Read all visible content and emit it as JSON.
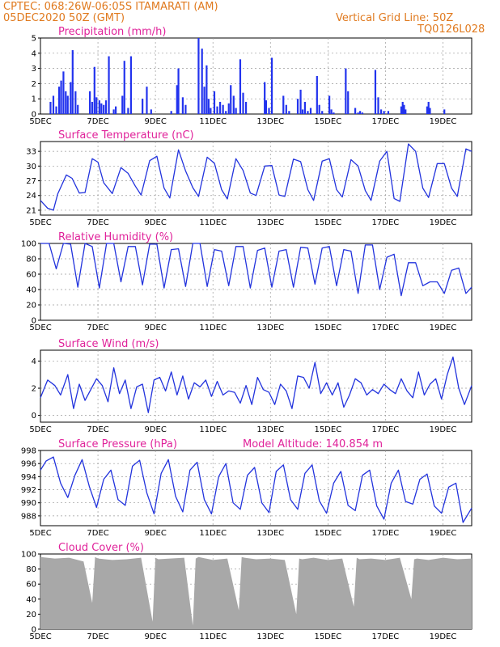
{
  "header": {
    "line1_left": "CPTEC:   068:26W-06:05S  ITAMARATI (AM)",
    "line2_left": "05DEC2020 50Z (GMT)",
    "line2_right": "Vertical Grid Line: 50Z",
    "line3_right": "TQ0126L028"
  },
  "colors": {
    "header": "#e07a1f",
    "panel_title": "#e0229a",
    "series_line": "#2233dd",
    "precip_bar": "#2233ee",
    "cloud_fill": "#a8a8a8",
    "grid": "#9a9a9a"
  },
  "chart_data": [
    {
      "type": "bar",
      "title": "Precipitation (mm/h)",
      "x_labels": [
        "5DEC",
        "7DEC",
        "9DEC",
        "11DEC",
        "13DEC",
        "15DEC",
        "17DEC",
        "19DEC"
      ],
      "x_range_days": [
        0,
        15
      ],
      "ylim": [
        0,
        5
      ],
      "yticks": [
        0,
        1,
        2,
        3,
        4,
        5
      ],
      "grid": true,
      "x": [
        0.35,
        0.45,
        0.55,
        0.65,
        0.72,
        0.8,
        0.88,
        0.95,
        1.05,
        1.12,
        1.22,
        1.3,
        1.72,
        1.8,
        1.88,
        1.95,
        2.05,
        2.12,
        2.2,
        2.28,
        2.38,
        2.55,
        2.62,
        2.85,
        2.92,
        3.05,
        3.15,
        3.55,
        3.7,
        3.85,
        4.55,
        4.75,
        4.8,
        4.95,
        5.05,
        5.5,
        5.62,
        5.7,
        5.78,
        5.85,
        5.92,
        6.05,
        6.15,
        6.25,
        6.35,
        6.45,
        6.55,
        6.62,
        6.72,
        6.8,
        6.95,
        7.05,
        7.15,
        7.8,
        7.85,
        7.95,
        8.05,
        8.45,
        8.55,
        8.65,
        8.95,
        9.05,
        9.12,
        9.2,
        9.3,
        9.4,
        9.62,
        9.7,
        9.8,
        10.05,
        10.12,
        10.2,
        10.62,
        10.7,
        10.95,
        11.05,
        11.12,
        11.2,
        11.65,
        11.75,
        11.85,
        11.95,
        12.1,
        12.55,
        12.6,
        12.65,
        12.7,
        13.45,
        13.5,
        13.55,
        14.05
      ],
      "values": [
        0.8,
        1.2,
        0.5,
        1.8,
        2.2,
        2.8,
        1.5,
        1.2,
        2.1,
        4.2,
        1.5,
        0.6,
        1.5,
        0.8,
        3.1,
        1.1,
        0.9,
        0.7,
        0.6,
        0.9,
        3.8,
        0.3,
        0.5,
        1.2,
        3.5,
        0.4,
        3.8,
        1.0,
        1.8,
        0.3,
        0.2,
        1.9,
        3.0,
        1.1,
        0.6,
        5.0,
        4.3,
        1.8,
        3.2,
        1.0,
        0.4,
        1.5,
        0.5,
        0.8,
        0.6,
        0.2,
        0.7,
        1.9,
        1.2,
        0.4,
        3.6,
        1.4,
        0.8,
        2.1,
        0.9,
        0.4,
        3.7,
        1.2,
        0.6,
        0.2,
        1.0,
        1.6,
        0.3,
        0.8,
        0.2,
        0.4,
        2.5,
        0.6,
        0.2,
        1.2,
        0.3,
        0.1,
        3.0,
        1.5,
        0.4,
        0.1,
        0.2,
        0.1,
        2.9,
        1.1,
        0.3,
        0.2,
        0.2,
        0.5,
        0.8,
        0.6,
        0.3,
        0.5,
        0.8,
        0.4,
        0.3
      ]
    },
    {
      "type": "line",
      "title": "Surface Temperature (nC)",
      "x_labels": [
        "5DEC",
        "7DEC",
        "9DEC",
        "11DEC",
        "13DEC",
        "15DEC",
        "17DEC",
        "19DEC"
      ],
      "ylim": [
        20,
        35
      ],
      "yticks": [
        21,
        24,
        27,
        30,
        33
      ],
      "grid": true,
      "x": [
        0,
        0.25,
        0.45,
        0.6,
        0.9,
        1.1,
        1.35,
        1.55,
        1.8,
        2.0,
        2.2,
        2.5,
        2.8,
        3.05,
        3.3,
        3.5,
        3.8,
        4.05,
        4.3,
        4.5,
        4.8,
        5.05,
        5.3,
        5.5,
        5.8,
        6.05,
        6.3,
        6.5,
        6.8,
        7.05,
        7.3,
        7.5,
        7.8,
        8.05,
        8.3,
        8.5,
        8.8,
        9.05,
        9.3,
        9.5,
        9.8,
        10.05,
        10.3,
        10.5,
        10.8,
        11.05,
        11.3,
        11.5,
        11.8,
        12.05,
        12.3,
        12.5,
        12.8,
        13.05,
        13.3,
        13.5,
        13.8,
        14.05,
        14.3,
        14.5,
        14.8,
        15.0
      ],
      "values": [
        23.0,
        21.4,
        21.0,
        24.3,
        28.2,
        27.5,
        24.5,
        24.6,
        31.5,
        30.8,
        26.6,
        24.4,
        29.7,
        28.5,
        25.9,
        24.1,
        31.1,
        32.0,
        25.5,
        23.5,
        33.3,
        29.0,
        25.6,
        23.8,
        31.8,
        30.6,
        25.2,
        23.3,
        31.5,
        29.1,
        24.5,
        24.0,
        30.0,
        30.1,
        24.1,
        23.8,
        31.4,
        30.9,
        25.2,
        23.0,
        31.0,
        31.5,
        25.2,
        23.7,
        31.3,
        30.0,
        25.0,
        23.0,
        31.0,
        33.0,
        23.4,
        22.8,
        34.5,
        33.0,
        25.5,
        23.6,
        30.5,
        30.5,
        25.5,
        23.8,
        33.5,
        33.0
      ]
    },
    {
      "type": "line",
      "title": "Relative Humidity (%)",
      "x_labels": [
        "5DEC",
        "7DEC",
        "9DEC",
        "11DEC",
        "13DEC",
        "15DEC",
        "17DEC",
        "19DEC"
      ],
      "ylim": [
        0,
        100
      ],
      "yticks": [
        0,
        20,
        40,
        60,
        80,
        100
      ],
      "grid": true,
      "x": [
        0,
        0.3,
        0.55,
        0.8,
        1.05,
        1.3,
        1.55,
        1.8,
        2.05,
        2.3,
        2.55,
        2.8,
        3.05,
        3.3,
        3.55,
        3.8,
        4.05,
        4.3,
        4.55,
        4.8,
        5.05,
        5.3,
        5.55,
        5.8,
        6.05,
        6.3,
        6.55,
        6.8,
        7.05,
        7.3,
        7.55,
        7.8,
        8.05,
        8.3,
        8.55,
        8.8,
        9.05,
        9.3,
        9.55,
        9.8,
        10.05,
        10.3,
        10.55,
        10.8,
        11.05,
        11.3,
        11.55,
        11.8,
        12.05,
        12.3,
        12.55,
        12.8,
        13.05,
        13.3,
        13.55,
        13.8,
        14.05,
        14.3,
        14.55,
        14.8,
        15.0
      ],
      "values": [
        100,
        100,
        67,
        100,
        99,
        43,
        100,
        96,
        42,
        100,
        100,
        50,
        96,
        96,
        46,
        99,
        99,
        42,
        92,
        93,
        44,
        100,
        100,
        44,
        92,
        90,
        45,
        96,
        96,
        42,
        91,
        94,
        43,
        90,
        92,
        43,
        95,
        94,
        47,
        94,
        96,
        45,
        92,
        90,
        35,
        98,
        98,
        40,
        82,
        86,
        32,
        75,
        75,
        45,
        50,
        50,
        35,
        65,
        68,
        35,
        43
      ]
    },
    {
      "type": "line",
      "title": "Surface Wind (m/s)",
      "x_labels": [
        "5DEC",
        "7DEC",
        "9DEC",
        "11DEC",
        "13DEC",
        "15DEC",
        "17DEC",
        "19DEC"
      ],
      "ylim": [
        -0.5,
        4.8
      ],
      "yticks": [
        0,
        2,
        4
      ],
      "grid": true,
      "x": [
        0,
        0.25,
        0.5,
        0.7,
        0.95,
        1.15,
        1.35,
        1.55,
        1.75,
        1.95,
        2.15,
        2.35,
        2.55,
        2.75,
        2.95,
        3.15,
        3.35,
        3.55,
        3.75,
        3.95,
        4.15,
        4.35,
        4.55,
        4.75,
        4.95,
        5.15,
        5.35,
        5.55,
        5.75,
        5.95,
        6.15,
        6.35,
        6.55,
        6.75,
        6.95,
        7.15,
        7.35,
        7.55,
        7.75,
        7.95,
        8.15,
        8.35,
        8.55,
        8.75,
        8.95,
        9.15,
        9.35,
        9.55,
        9.75,
        9.95,
        10.15,
        10.35,
        10.55,
        10.75,
        10.95,
        11.15,
        11.35,
        11.55,
        11.75,
        11.95,
        12.15,
        12.35,
        12.55,
        12.75,
        12.95,
        13.15,
        13.35,
        13.55,
        13.75,
        13.95,
        14.15,
        14.35,
        14.55,
        14.75,
        15.0
      ],
      "values": [
        1.3,
        2.6,
        2.2,
        1.5,
        3.0,
        0.5,
        2.3,
        1.1,
        1.9,
        2.7,
        2.2,
        1.0,
        3.5,
        1.6,
        2.6,
        0.5,
        2.1,
        2.3,
        0.2,
        2.6,
        2.8,
        1.8,
        3.2,
        1.5,
        2.9,
        1.2,
        2.4,
        2.1,
        2.6,
        1.4,
        2.5,
        1.5,
        1.8,
        1.7,
        0.9,
        2.2,
        0.8,
        2.8,
        1.9,
        1.7,
        0.8,
        2.3,
        1.8,
        0.5,
        2.9,
        2.8,
        2.0,
        3.9,
        1.6,
        2.4,
        1.5,
        2.4,
        0.6,
        1.5,
        2.7,
        2.4,
        1.5,
        1.9,
        1.6,
        2.3,
        1.9,
        1.6,
        2.7,
        1.8,
        1.3,
        3.2,
        1.5,
        2.3,
        2.7,
        1.2,
        3.0,
        4.3,
        2.0,
        0.8,
        2.2
      ]
    },
    {
      "type": "line",
      "title": "Surface Pressure (hPa)",
      "annotation": "Model Altitude: 140.854 m",
      "x_labels": [
        "5DEC",
        "7DEC",
        "9DEC",
        "11DEC",
        "13DEC",
        "15DEC",
        "17DEC",
        "19DEC"
      ],
      "ylim": [
        986.5,
        998
      ],
      "yticks": [
        988,
        990,
        992,
        994,
        996,
        998
      ],
      "grid": true,
      "x": [
        0,
        0.2,
        0.45,
        0.7,
        0.95,
        1.2,
        1.45,
        1.7,
        1.95,
        2.2,
        2.45,
        2.7,
        2.95,
        3.2,
        3.45,
        3.7,
        3.95,
        4.2,
        4.45,
        4.7,
        4.95,
        5.2,
        5.45,
        5.7,
        5.95,
        6.2,
        6.45,
        6.7,
        6.95,
        7.2,
        7.45,
        7.7,
        7.95,
        8.2,
        8.45,
        8.7,
        8.95,
        9.2,
        9.45,
        9.7,
        9.95,
        10.2,
        10.45,
        10.7,
        10.95,
        11.2,
        11.45,
        11.7,
        11.95,
        12.2,
        12.45,
        12.7,
        12.95,
        13.2,
        13.45,
        13.7,
        13.95,
        14.2,
        14.45,
        14.7,
        15.0
      ],
      "values": [
        995.0,
        996.4,
        997.0,
        993.0,
        990.8,
        994.2,
        996.6,
        992.5,
        989.3,
        993.6,
        995.0,
        990.5,
        989.6,
        995.6,
        996.5,
        991.5,
        988.3,
        994.5,
        996.6,
        991.0,
        988.6,
        995.0,
        996.2,
        990.5,
        988.3,
        994.0,
        996.0,
        990.0,
        989.0,
        994.2,
        995.4,
        990.0,
        988.5,
        994.8,
        995.8,
        990.5,
        989.0,
        994.5,
        995.8,
        990.3,
        988.4,
        993.0,
        994.8,
        989.6,
        988.8,
        994.2,
        995.0,
        989.5,
        987.5,
        993.0,
        995.0,
        990.2,
        989.8,
        993.6,
        994.4,
        989.5,
        988.4,
        992.4,
        993.0,
        987.0,
        989.2
      ]
    },
    {
      "type": "area",
      "title": "Cloud Cover (%)",
      "x_labels": [
        "5DEC",
        "7DEC",
        "9DEC",
        "11DEC",
        "13DEC",
        "15DEC",
        "17DEC",
        "19DEC"
      ],
      "ylim": [
        0,
        100
      ],
      "yticks": [
        0,
        20,
        40,
        60,
        80,
        100
      ],
      "grid": true,
      "x": [
        0,
        0.5,
        1.0,
        1.5,
        1.8,
        1.9,
        2.0,
        2.5,
        3.0,
        3.5,
        3.9,
        4.0,
        4.1,
        4.5,
        5.0,
        5.3,
        5.4,
        5.5,
        6.0,
        6.5,
        6.9,
        7.0,
        7.1,
        7.5,
        8.0,
        8.5,
        8.9,
        9.0,
        9.1,
        9.5,
        10.0,
        10.5,
        10.9,
        11.0,
        11.1,
        11.5,
        12.0,
        12.5,
        12.9,
        13.0,
        13.1,
        13.5,
        14.0,
        14.5,
        15.0
      ],
      "values": [
        96,
        94,
        95,
        90,
        35,
        96,
        94,
        92,
        93,
        95,
        10,
        95,
        93,
        94,
        95,
        5,
        94,
        96,
        92,
        94,
        25,
        96,
        95,
        93,
        94,
        92,
        20,
        94,
        93,
        95,
        92,
        94,
        30,
        95,
        93,
        94,
        92,
        95,
        40,
        93,
        94,
        92,
        95,
        93,
        94
      ]
    }
  ]
}
